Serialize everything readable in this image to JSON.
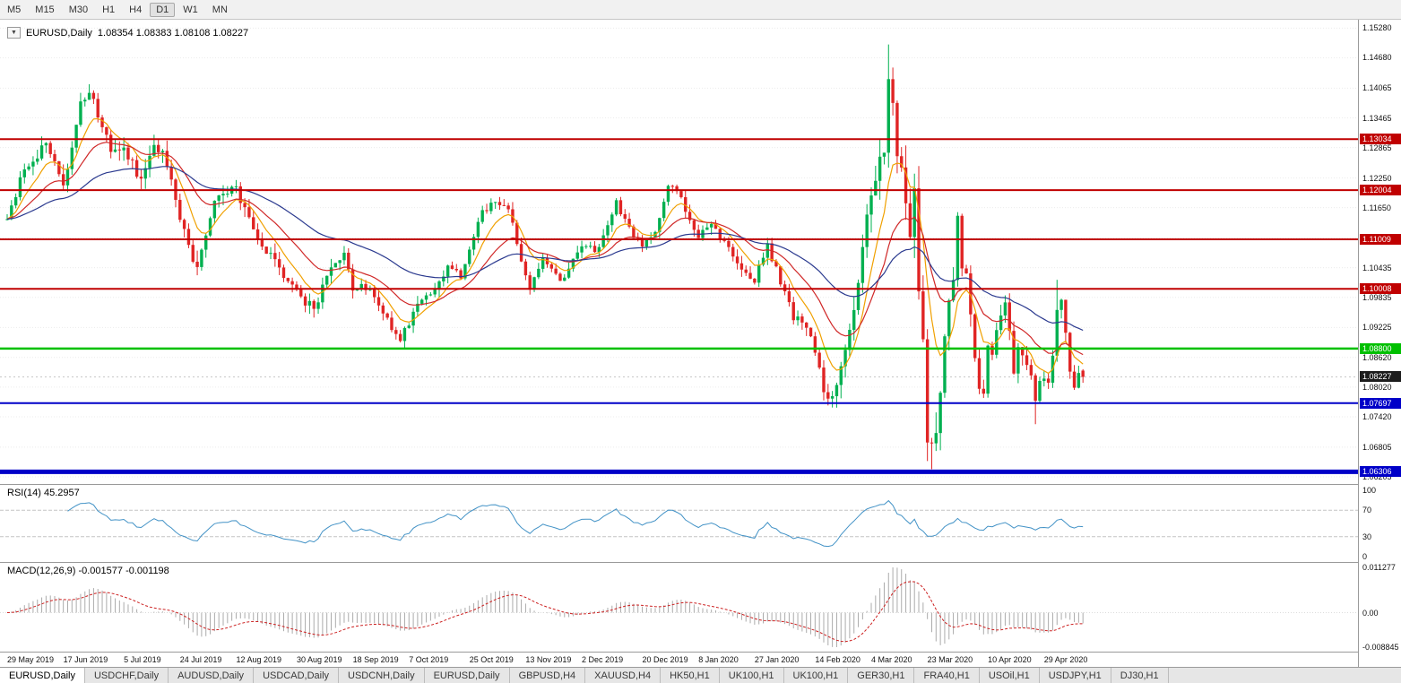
{
  "toolbar": {
    "timeframes": [
      "M5",
      "M15",
      "M30",
      "H1",
      "H4",
      "D1",
      "W1",
      "MN"
    ],
    "active": "D1"
  },
  "icons": {
    "dropdown": "▼"
  },
  "chart": {
    "legend_symbol": "EURUSD,Daily",
    "legend_ohlc": "1.08354  1.08383  1.08108  1.08227",
    "axis_ticks": [
      "1.15280",
      "1.14680",
      "1.14065",
      "1.13465",
      "1.12865",
      "1.12250",
      "1.11650",
      "1.11035",
      "1.10435",
      "1.09835",
      "1.09225",
      "1.08620",
      "1.08020",
      "1.07420",
      "1.06805",
      "1.06205"
    ],
    "hlines": [
      {
        "label": "1.13034",
        "value": 1.13034,
        "color": "#c00000",
        "width": 2
      },
      {
        "label": "1.12004",
        "value": 1.12004,
        "color": "#c00000",
        "width": 2
      },
      {
        "label": "1.11009",
        "value": 1.11009,
        "color": "#c00000",
        "width": 2
      },
      {
        "label": "1.10008",
        "value": 1.10008,
        "color": "#c00000",
        "width": 2
      },
      {
        "label": "1.08800",
        "value": 1.088,
        "color": "#00c000",
        "width": 2.5
      },
      {
        "label": "1.07697",
        "value": 1.07697,
        "color": "#0000c8",
        "width": 2
      },
      {
        "label": "1.06306",
        "value": 1.06306,
        "color": "#0000c8",
        "width": 5
      }
    ],
    "current_price": {
      "label": "1.08227",
      "value": 1.08227,
      "color": "#1c1c1c"
    }
  },
  "rsi": {
    "label": "RSI(14) 45.2957",
    "ticks": [
      {
        "label": "100",
        "value": 100
      },
      {
        "label": "70",
        "value": 70
      },
      {
        "label": "30",
        "value": 30
      },
      {
        "label": "0",
        "value": 0
      }
    ],
    "levels": [
      70,
      30
    ]
  },
  "macd": {
    "label": "MACD(12,26,9) -0.001577 -0.001198",
    "ticks": {
      "max": "0.011277",
      "zero": "0.00",
      "min": "-0.008845"
    }
  },
  "dates": [
    "29 May 2019",
    "17 Jun 2019",
    "5 Jul 2019",
    "24 Jul 2019",
    "12 Aug 2019",
    "30 Aug 2019",
    "18 Sep 2019",
    "7 Oct 2019",
    "25 Oct 2019",
    "13 Nov 2019",
    "2 Dec 2019",
    "20 Dec 2019",
    "8 Jan 2020",
    "27 Jan 2020",
    "14 Feb 2020",
    "4 Mar 2020",
    "23 Mar 2020",
    "10 Apr 2020",
    "29 Apr 2020"
  ],
  "tabs": {
    "active_index": 0,
    "items": [
      "EURUSD,Daily",
      "USDCHF,Daily",
      "AUDUSD,Daily",
      "USDCAD,Daily",
      "USDCNH,Daily",
      "EURUSD,Daily",
      "GBPUSD,H4",
      "XAUUSD,H4",
      "HK50,H1",
      "UK100,H1",
      "UK100,H1",
      "GER30,H1",
      "FRA40,H1",
      "USOil,H1",
      "USDJPY,H1",
      "DJ30,H1"
    ],
    "note": ""
  },
  "chart_data": {
    "type": "candlestick",
    "symbol": "EURUSD",
    "timeframe": "Daily",
    "candles": 250,
    "date_indices": [
      0,
      13,
      27,
      40,
      53,
      67,
      80,
      93,
      107,
      120,
      133,
      147,
      160,
      173,
      187,
      200,
      213,
      227,
      240
    ],
    "price_anchors": [
      [
        0,
        1.114
      ],
      [
        4,
        1.125
      ],
      [
        9,
        1.129
      ],
      [
        13,
        1.1215
      ],
      [
        17,
        1.137
      ],
      [
        19,
        1.1398
      ],
      [
        22,
        1.133
      ],
      [
        24,
        1.128
      ],
      [
        27,
        1.1285
      ],
      [
        31,
        1.122
      ],
      [
        34,
        1.128
      ],
      [
        36,
        1.127
      ],
      [
        40,
        1.115
      ],
      [
        44,
        1.104
      ],
      [
        46,
        1.111
      ],
      [
        49,
        1.12
      ],
      [
        53,
        1.1205
      ],
      [
        58,
        1.109
      ],
      [
        62,
        1.106
      ],
      [
        67,
        1.099
      ],
      [
        71,
        1.096
      ],
      [
        74,
        1.103
      ],
      [
        78,
        1.107
      ],
      [
        80,
        1.1
      ],
      [
        84,
        1.101
      ],
      [
        88,
        1.094
      ],
      [
        91,
        1.0895
      ],
      [
        95,
        1.0975
      ],
      [
        98,
        1.0985
      ],
      [
        102,
        1.104
      ],
      [
        105,
        1.103
      ],
      [
        109,
        1.114
      ],
      [
        112,
        1.1175
      ],
      [
        116,
        1.116
      ],
      [
        121,
        1.0995
      ],
      [
        124,
        1.106
      ],
      [
        128,
        1.1015
      ],
      [
        133,
        1.108
      ],
      [
        137,
        1.108
      ],
      [
        141,
        1.1175
      ],
      [
        144,
        1.112
      ],
      [
        147,
        1.1085
      ],
      [
        150,
        1.112
      ],
      [
        153,
        1.121
      ],
      [
        155,
        1.12
      ],
      [
        158,
        1.1145
      ],
      [
        160,
        1.111
      ],
      [
        163,
        1.1125
      ],
      [
        167,
        1.109
      ],
      [
        170,
        1.1045
      ],
      [
        173,
        1.102
      ],
      [
        176,
        1.1085
      ],
      [
        182,
        1.0945
      ],
      [
        186,
        1.0915
      ],
      [
        189,
        1.0792
      ],
      [
        191,
        1.0786
      ],
      [
        194,
        1.088
      ],
      [
        197,
        1.1
      ],
      [
        199,
        1.117
      ],
      [
        201,
        1.124
      ],
      [
        203,
        1.129
      ],
      [
        204,
        1.144
      ],
      [
        206,
        1.128
      ],
      [
        207,
        1.127
      ],
      [
        208,
        1.1185
      ],
      [
        209,
        1.1106
      ],
      [
        210,
        1.118
      ],
      [
        211,
        1.0995
      ],
      [
        212,
        1.0915
      ],
      [
        213,
        1.0693
      ],
      [
        214,
        1.0685
      ],
      [
        215,
        1.0726
      ],
      [
        216,
        1.079
      ],
      [
        217,
        1.0885
      ],
      [
        219,
        1.103
      ],
      [
        220,
        1.114
      ],
      [
        221,
        1.1047
      ],
      [
        222,
        1.103
      ],
      [
        223,
        1.0962
      ],
      [
        224,
        1.0855
      ],
      [
        225,
        1.0808
      ],
      [
        226,
        1.0791
      ],
      [
        227,
        1.0889
      ],
      [
        228,
        1.0857
      ],
      [
        229,
        1.093
      ],
      [
        230,
        1.0936
      ],
      [
        231,
        1.098
      ],
      [
        232,
        1.091
      ],
      [
        233,
        1.084
      ],
      [
        234,
        1.0875
      ],
      [
        235,
        1.0863
      ],
      [
        236,
        1.0858
      ],
      [
        237,
        1.0822
      ],
      [
        238,
        1.0775
      ],
      [
        239,
        1.0821
      ],
      [
        240,
        1.083
      ],
      [
        241,
        1.0818
      ],
      [
        242,
        1.0873
      ],
      [
        243,
        1.0955
      ],
      [
        244,
        1.098
      ],
      [
        245,
        1.0907
      ],
      [
        246,
        1.0837
      ],
      [
        247,
        1.0795
      ],
      [
        248,
        1.0834
      ],
      [
        249,
        1.0823
      ]
    ],
    "volatility_anchors": [
      [
        0,
        0.0042
      ],
      [
        44,
        0.005
      ],
      [
        90,
        0.0036
      ],
      [
        150,
        0.003
      ],
      [
        185,
        0.0042
      ],
      [
        197,
        0.007
      ],
      [
        204,
        0.011
      ],
      [
        215,
        0.01
      ],
      [
        222,
        0.0065
      ],
      [
        232,
        0.0048
      ],
      [
        249,
        0.0038
      ]
    ],
    "wick_overrides": [
      [
        19,
        "high",
        1.1412
      ],
      [
        92,
        "low",
        1.0879
      ],
      [
        191,
        "low",
        1.0777
      ],
      [
        204,
        "high",
        1.1495
      ],
      [
        213,
        "low",
        1.0656
      ],
      [
        214,
        "low",
        1.0636
      ],
      [
        238,
        "low",
        1.0727
      ],
      [
        243,
        "high",
        1.1019
      ]
    ],
    "last_candle": {
      "open": 1.08354,
      "high": 1.08383,
      "low": 1.08108,
      "close": 1.08227
    },
    "indicators": {
      "rsi_period": 14,
      "macd": [
        12,
        26,
        9
      ],
      "mas": [
        {
          "type": "ema",
          "period": 8,
          "color": "#f0a000"
        },
        {
          "type": "ema",
          "period": 20,
          "color": "#d02828"
        },
        {
          "type": "ema",
          "period": 50,
          "color": "#2b3a8f"
        }
      ]
    },
    "colors": {
      "up": "#00b050",
      "down": "#e02424",
      "rsi": "#4292c6",
      "macd_hist": "#ababab",
      "macd_signal": "#cc2020"
    }
  }
}
